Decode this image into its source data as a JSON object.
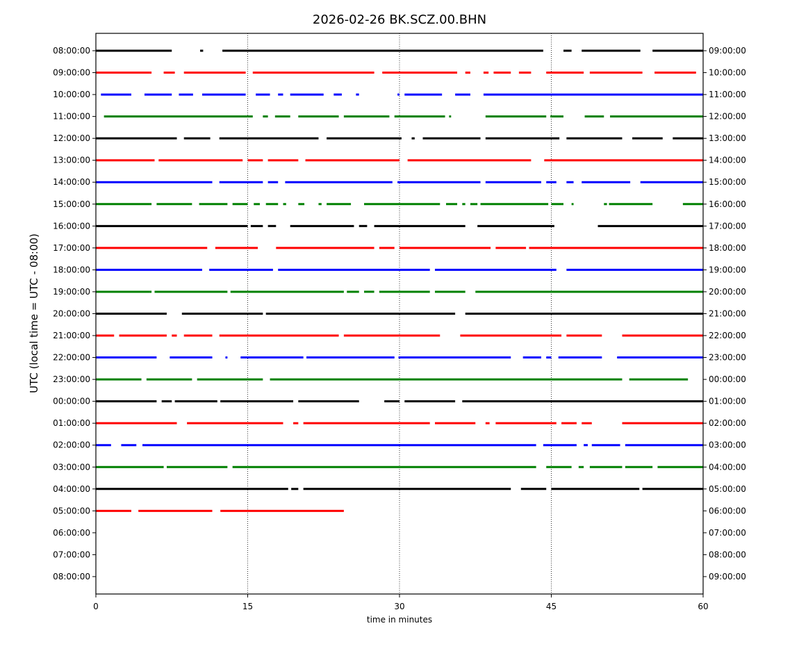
{
  "chart_data": {
    "type": "line",
    "title": "2026-02-26 BK.SCZ.00.BHN",
    "xlabel": "time in minutes",
    "ylabel": "UTC (local time = UTC - 08:00)",
    "xlim": [
      0,
      60
    ],
    "x_ticks": [
      0,
      15,
      30,
      45,
      60
    ],
    "x_tick_labels": [
      "0",
      "15",
      "30",
      "45",
      "60"
    ],
    "grid_x": [
      15,
      30,
      45
    ],
    "colors": [
      "#000000",
      "#ff0000",
      "#0000ff",
      "#008000"
    ],
    "left_tick_labels": [
      "08:00:00",
      "09:00:00",
      "10:00:00",
      "11:00:00",
      "12:00:00",
      "13:00:00",
      "14:00:00",
      "15:00:00",
      "16:00:00",
      "17:00:00",
      "18:00:00",
      "19:00:00",
      "20:00:00",
      "21:00:00",
      "22:00:00",
      "23:00:00",
      "00:00:00",
      "01:00:00",
      "02:00:00",
      "03:00:00",
      "04:00:00",
      "05:00:00",
      "06:00:00",
      "07:00:00",
      "08:00:00"
    ],
    "right_tick_labels": [
      "09:00:00",
      "10:00:00",
      "11:00:00",
      "12:00:00",
      "13:00:00",
      "14:00:00",
      "15:00:00",
      "16:00:00",
      "17:00:00",
      "18:00:00",
      "19:00:00",
      "20:00:00",
      "21:00:00",
      "22:00:00",
      "23:00:00",
      "00:00:00",
      "01:00:00",
      "02:00:00",
      "03:00:00",
      "04:00:00",
      "05:00:00",
      "06:00:00",
      "07:00:00",
      "08:00:00",
      "09:00:00"
    ],
    "series": [
      {
        "row": 0,
        "segments": [
          [
            0,
            7.5
          ],
          [
            10.3,
            10.6
          ],
          [
            12.5,
            44.2
          ],
          [
            46.2,
            47.0
          ],
          [
            48.0,
            53.8
          ],
          [
            55.0,
            60
          ]
        ]
      },
      {
        "row": 1,
        "segments": [
          [
            0,
            5.5
          ],
          [
            6.7,
            7.8
          ],
          [
            8.7,
            14.8
          ],
          [
            15.5,
            27.5
          ],
          [
            28.3,
            35.7
          ],
          [
            36.5,
            37.0
          ],
          [
            38.3,
            38.8
          ],
          [
            39.3,
            41.0
          ],
          [
            41.8,
            43.0
          ],
          [
            44.5,
            48.2
          ],
          [
            48.8,
            54.0
          ],
          [
            55.2,
            59.3
          ]
        ]
      },
      {
        "row": 2,
        "segments": [
          [
            0.5,
            3.5
          ],
          [
            4.8,
            7.5
          ],
          [
            8.2,
            9.6
          ],
          [
            10.5,
            14.8
          ],
          [
            15.8,
            17.2
          ],
          [
            18.0,
            18.5
          ],
          [
            19.2,
            22.5
          ],
          [
            23.5,
            24.3
          ],
          [
            25.7,
            26.0
          ],
          [
            29.8,
            30.0
          ],
          [
            30.5,
            34.2
          ],
          [
            35.5,
            37.0
          ],
          [
            38.3,
            60
          ]
        ]
      },
      {
        "row": 3,
        "segments": [
          [
            0.8,
            15.5
          ],
          [
            16.5,
            17.0
          ],
          [
            17.7,
            19.2
          ],
          [
            20.0,
            24.0
          ],
          [
            24.5,
            29.0
          ],
          [
            29.5,
            34.5
          ],
          [
            34.9,
            35.1
          ],
          [
            38.5,
            44.5
          ],
          [
            44.9,
            46.2
          ],
          [
            48.3,
            50.2
          ],
          [
            50.8,
            60
          ]
        ]
      },
      {
        "row": 4,
        "segments": [
          [
            0,
            8.0
          ],
          [
            8.7,
            11.3
          ],
          [
            12.2,
            22.0
          ],
          [
            22.8,
            30.2
          ],
          [
            31.2,
            31.5
          ],
          [
            32.3,
            38.0
          ],
          [
            38.5,
            45.8
          ],
          [
            46.5,
            52.0
          ],
          [
            53.0,
            56.0
          ],
          [
            57.0,
            60
          ]
        ]
      },
      {
        "row": 5,
        "segments": [
          [
            0,
            5.8
          ],
          [
            6.2,
            14.5
          ],
          [
            15.0,
            16.5
          ],
          [
            17.0,
            20.0
          ],
          [
            20.7,
            30.0
          ],
          [
            30.8,
            43.0
          ],
          [
            44.3,
            60
          ]
        ]
      },
      {
        "row": 6,
        "segments": [
          [
            0,
            11.5
          ],
          [
            12.2,
            16.5
          ],
          [
            17.0,
            18.0
          ],
          [
            18.7,
            29.3
          ],
          [
            29.8,
            38.0
          ],
          [
            38.5,
            44.0
          ],
          [
            44.5,
            45.5
          ],
          [
            46.5,
            47.2
          ],
          [
            48.0,
            52.8
          ],
          [
            53.8,
            60
          ]
        ]
      },
      {
        "row": 7,
        "segments": [
          [
            0,
            5.5
          ],
          [
            6.0,
            9.5
          ],
          [
            10.2,
            13.0
          ],
          [
            13.5,
            15.0
          ],
          [
            15.6,
            16.2
          ],
          [
            16.8,
            18.0
          ],
          [
            18.5,
            18.8
          ],
          [
            20.0,
            20.6
          ],
          [
            22.0,
            22.3
          ],
          [
            22.8,
            25.2
          ],
          [
            26.5,
            34.0
          ],
          [
            34.6,
            35.7
          ],
          [
            36.2,
            36.5
          ],
          [
            37.0,
            37.7
          ],
          [
            38.0,
            44.7
          ],
          [
            45.0,
            46.2
          ],
          [
            47.0,
            47.2
          ],
          [
            50.2,
            50.5
          ],
          [
            50.7,
            55.0
          ],
          [
            58.0,
            60
          ]
        ]
      },
      {
        "row": 8,
        "segments": [
          [
            0,
            15.0
          ],
          [
            15.3,
            16.5
          ],
          [
            17.0,
            17.8
          ],
          [
            19.2,
            25.5
          ],
          [
            26.0,
            26.8
          ],
          [
            27.5,
            36.5
          ],
          [
            37.7,
            45.3
          ],
          [
            49.6,
            60
          ]
        ]
      },
      {
        "row": 9,
        "segments": [
          [
            0,
            11.0
          ],
          [
            11.8,
            16.0
          ],
          [
            17.8,
            27.5
          ],
          [
            28.0,
            29.5
          ],
          [
            30.0,
            39.0
          ],
          [
            39.5,
            42.5
          ],
          [
            42.8,
            60
          ]
        ]
      },
      {
        "row": 10,
        "segments": [
          [
            0,
            10.5
          ],
          [
            11.2,
            17.5
          ],
          [
            18.0,
            33.0
          ],
          [
            33.5,
            45.5
          ],
          [
            46.5,
            60
          ]
        ]
      },
      {
        "row": 11,
        "segments": [
          [
            0,
            5.5
          ],
          [
            5.8,
            13.0
          ],
          [
            13.3,
            24.5
          ],
          [
            24.8,
            26.0
          ],
          [
            26.5,
            27.5
          ],
          [
            28.0,
            33.0
          ],
          [
            33.5,
            36.5
          ],
          [
            37.5,
            60
          ]
        ]
      },
      {
        "row": 12,
        "segments": [
          [
            0,
            7.0
          ],
          [
            8.5,
            16.5
          ],
          [
            16.8,
            35.5
          ],
          [
            36.5,
            60
          ]
        ]
      },
      {
        "row": 13,
        "segments": [
          [
            0,
            1.8
          ],
          [
            2.3,
            7.0
          ],
          [
            7.5,
            8.0
          ],
          [
            8.7,
            11.5
          ],
          [
            12.2,
            24.0
          ],
          [
            24.5,
            34.0
          ],
          [
            36.0,
            46.0
          ],
          [
            46.5,
            50.0
          ],
          [
            52.0,
            60
          ]
        ]
      },
      {
        "row": 14,
        "segments": [
          [
            0,
            6.0
          ],
          [
            7.3,
            11.5
          ],
          [
            12.8,
            13.0
          ],
          [
            14.3,
            20.5
          ],
          [
            20.8,
            29.5
          ],
          [
            29.9,
            41.0
          ],
          [
            42.2,
            44.0
          ],
          [
            44.5,
            45.0
          ],
          [
            45.7,
            50.0
          ],
          [
            51.5,
            60
          ]
        ]
      },
      {
        "row": 15,
        "segments": [
          [
            0,
            4.5
          ],
          [
            5.0,
            9.5
          ],
          [
            10.0,
            16.5
          ],
          [
            17.2,
            52.0
          ],
          [
            52.7,
            58.5
          ]
        ]
      },
      {
        "row": 16,
        "segments": [
          [
            0,
            6.0
          ],
          [
            6.5,
            7.5
          ],
          [
            7.8,
            12.0
          ],
          [
            12.3,
            19.5
          ],
          [
            20.0,
            26.0
          ],
          [
            28.5,
            30.0
          ],
          [
            30.5,
            35.5
          ],
          [
            36.2,
            60
          ]
        ]
      },
      {
        "row": 17,
        "segments": [
          [
            0,
            8.0
          ],
          [
            9.0,
            18.5
          ],
          [
            19.5,
            20.0
          ],
          [
            20.5,
            33.0
          ],
          [
            33.5,
            37.5
          ],
          [
            38.5,
            38.9
          ],
          [
            39.5,
            45.5
          ],
          [
            46.0,
            47.5
          ],
          [
            48.0,
            49.0
          ],
          [
            52.0,
            60
          ]
        ]
      },
      {
        "row": 18,
        "segments": [
          [
            0,
            1.5
          ],
          [
            2.5,
            4.0
          ],
          [
            4.6,
            43.5
          ],
          [
            44.2,
            47.5
          ],
          [
            48.2,
            48.6
          ],
          [
            49.0,
            51.8
          ],
          [
            52.3,
            60
          ]
        ]
      },
      {
        "row": 19,
        "segments": [
          [
            0,
            6.7
          ],
          [
            7.0,
            13.0
          ],
          [
            13.5,
            43.5
          ],
          [
            44.5,
            47.0
          ],
          [
            47.7,
            48.2
          ],
          [
            48.8,
            52.0
          ],
          [
            52.3,
            55.0
          ],
          [
            55.5,
            60
          ]
        ]
      },
      {
        "row": 20,
        "segments": [
          [
            0,
            19.0
          ],
          [
            19.3,
            20.0
          ],
          [
            20.5,
            41.0
          ],
          [
            42.0,
            44.5
          ],
          [
            45.0,
            53.7
          ],
          [
            54.0,
            60
          ]
        ]
      },
      {
        "row": 21,
        "segments": [
          [
            0,
            3.5
          ],
          [
            4.2,
            11.5
          ],
          [
            12.3,
            24.5
          ]
        ]
      }
    ]
  }
}
